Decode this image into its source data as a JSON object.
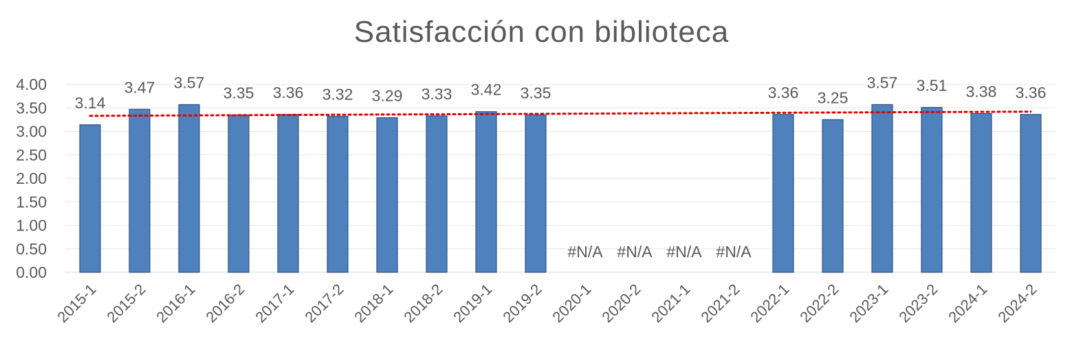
{
  "chart_data": {
    "type": "bar",
    "title": "Satisfacción con biblioteca",
    "xlabel": "",
    "ylabel": "",
    "ylim": [
      0,
      4
    ],
    "yticks": [
      "0.00",
      "0.50",
      "1.00",
      "1.50",
      "2.00",
      "2.50",
      "3.00",
      "3.50",
      "4.00"
    ],
    "categories": [
      "2015-1",
      "2015-2",
      "2016-1",
      "2016-2",
      "2017-1",
      "2017-2",
      "2018-1",
      "2018-2",
      "2019-1",
      "2019-2",
      "2020-1",
      "2020-2",
      "2021-1",
      "2021-2",
      "2022-1",
      "2022-2",
      "2023-1",
      "2023-2",
      "2024-1",
      "2024-2"
    ],
    "values": [
      3.14,
      3.47,
      3.57,
      3.35,
      3.36,
      3.32,
      3.29,
      3.33,
      3.42,
      3.35,
      null,
      null,
      null,
      null,
      3.36,
      3.25,
      3.57,
      3.51,
      3.38,
      3.36
    ],
    "data_labels": [
      "3.14",
      "3.47",
      "3.57",
      "3.35",
      "3.36",
      "3.32",
      "3.29",
      "3.33",
      "3.42",
      "3.35",
      "#N/A",
      "#N/A",
      "#N/A",
      "#N/A",
      "3.36",
      "3.25",
      "3.57",
      "3.51",
      "3.38",
      "3.36"
    ],
    "trendline": {
      "type": "linear",
      "start": 3.33,
      "end": 3.42
    },
    "grid": true,
    "legend": "none",
    "colors": {
      "bar": "#4f81bd",
      "bar_border": "#2e5384",
      "trendline": "#e00000",
      "text": "#595959",
      "grid": "#e6e6e6"
    }
  }
}
